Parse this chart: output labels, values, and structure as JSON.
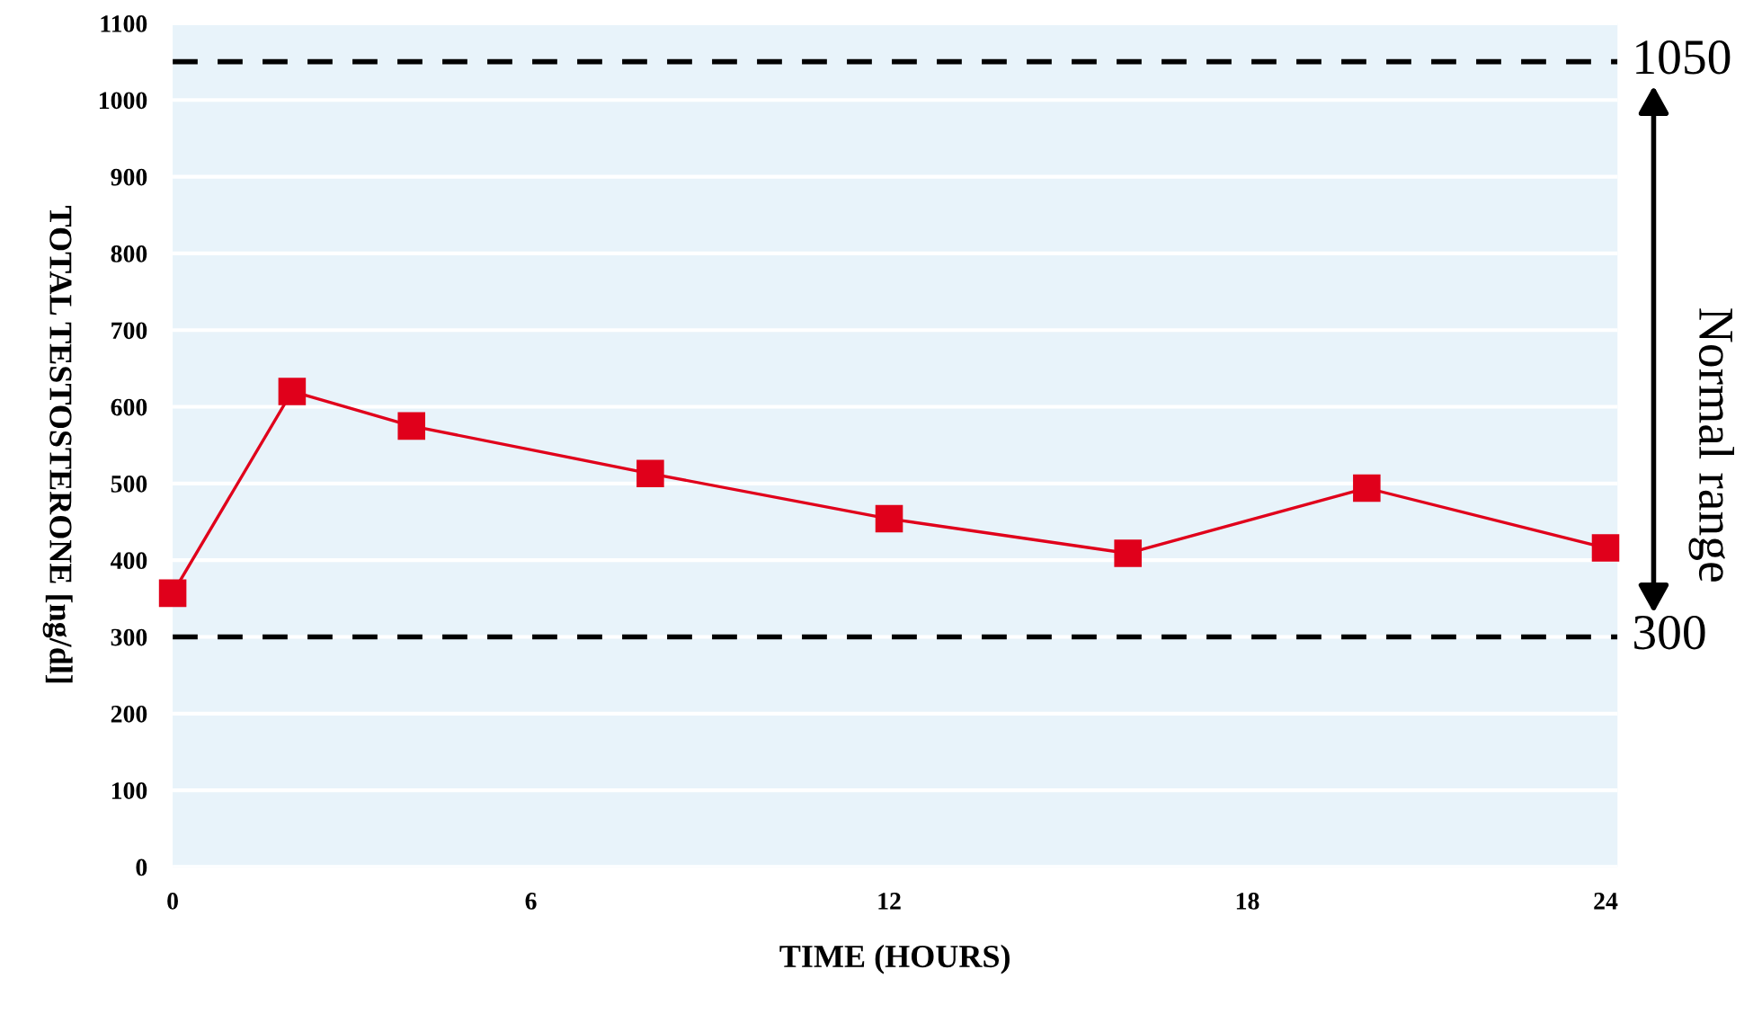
{
  "chart_data": {
    "type": "line",
    "xlabel": "TIME (HOURS)",
    "ylabel": "TOTAL TESTOSTERONE [ng/dl]",
    "x": [
      0,
      2,
      4,
      8,
      12,
      16,
      20,
      24
    ],
    "series": [
      {
        "color": "#e0001b",
        "values": [
          357,
          620,
          575,
          513,
          454,
          409,
          494,
          416
        ]
      }
    ],
    "xlim": [
      0,
      24.2
    ],
    "xticks": [
      0,
      6,
      12,
      18,
      24
    ],
    "ylim": [
      0,
      1100
    ],
    "yticks": [
      0,
      100,
      200,
      300,
      400,
      500,
      600,
      700,
      800,
      900,
      1000,
      1100
    ],
    "grid": "y",
    "marker": "square",
    "line_style": "solid",
    "ref_lines": [
      {
        "axis": "y",
        "value": 1050,
        "label": "1050",
        "color": "#000000",
        "line_style": "dashed"
      },
      {
        "axis": "y",
        "value": 300,
        "label": "300",
        "color": "#000000",
        "line_style": "dashed"
      }
    ],
    "annotations": [
      "Normal range"
    ]
  }
}
